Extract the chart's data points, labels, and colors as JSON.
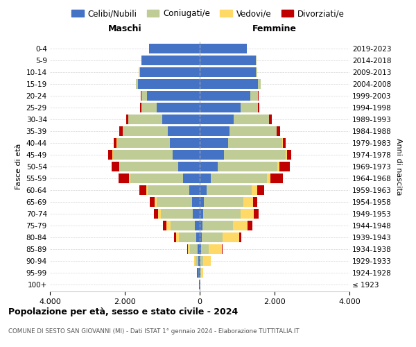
{
  "age_groups": [
    "100+",
    "95-99",
    "90-94",
    "85-89",
    "80-84",
    "75-79",
    "70-74",
    "65-69",
    "60-64",
    "55-59",
    "50-54",
    "45-49",
    "40-44",
    "35-39",
    "30-34",
    "25-29",
    "20-24",
    "15-19",
    "10-14",
    "5-9",
    "0-4"
  ],
  "birth_years": [
    "≤ 1923",
    "1924-1928",
    "1929-1933",
    "1934-1938",
    "1939-1943",
    "1944-1948",
    "1949-1953",
    "1954-1958",
    "1959-1963",
    "1964-1968",
    "1969-1973",
    "1974-1978",
    "1979-1983",
    "1984-1988",
    "1989-1993",
    "1994-1998",
    "1999-2003",
    "2004-2008",
    "2009-2013",
    "2014-2018",
    "2019-2023"
  ],
  "colors": {
    "celibi": "#4472C4",
    "coniugati": "#BFCC96",
    "vedovi": "#FFD966",
    "divorziati": "#C00000",
    "background": "#FFFFFF",
    "grid": "#CCCCCC",
    "dashed_line": "#AAAAAA"
  },
  "maschi": {
    "celibi": [
      10,
      30,
      30,
      60,
      100,
      130,
      180,
      200,
      280,
      450,
      580,
      720,
      800,
      850,
      1000,
      1150,
      1400,
      1650,
      1600,
      1550,
      1350
    ],
    "coniugati": [
      5,
      20,
      80,
      200,
      450,
      650,
      850,
      950,
      1100,
      1400,
      1550,
      1600,
      1400,
      1200,
      900,
      400,
      150,
      50,
      20,
      10,
      5
    ],
    "vedovi": [
      2,
      10,
      30,
      50,
      80,
      100,
      80,
      60,
      40,
      30,
      25,
      20,
      15,
      10,
      5,
      5,
      5,
      3,
      2,
      1,
      1
    ],
    "divorziati": [
      1,
      5,
      10,
      20,
      50,
      100,
      120,
      130,
      200,
      280,
      200,
      100,
      80,
      80,
      50,
      30,
      10,
      5,
      3,
      2,
      1
    ]
  },
  "femmine": {
    "celibi": [
      10,
      20,
      20,
      40,
      60,
      80,
      100,
      120,
      180,
      300,
      480,
      650,
      750,
      800,
      900,
      1100,
      1350,
      1550,
      1500,
      1500,
      1250
    ],
    "coniugati": [
      5,
      15,
      70,
      200,
      550,
      800,
      1000,
      1050,
      1200,
      1500,
      1600,
      1650,
      1450,
      1250,
      950,
      450,
      200,
      80,
      30,
      15,
      5
    ],
    "vedovi": [
      10,
      60,
      200,
      350,
      450,
      400,
      350,
      250,
      150,
      80,
      50,
      30,
      20,
      10,
      8,
      5,
      5,
      3,
      2,
      1,
      1
    ],
    "divorziati": [
      1,
      5,
      10,
      20,
      60,
      120,
      120,
      120,
      200,
      350,
      280,
      120,
      80,
      80,
      60,
      30,
      15,
      5,
      3,
      2,
      1
    ]
  },
  "xlim": 4000,
  "xticks": [
    -4000,
    -2000,
    0,
    2000,
    4000
  ],
  "xticklabels": [
    "4.000",
    "2.000",
    "0",
    "2.000",
    "4.000"
  ],
  "title_main": "Popolazione per età, sesso e stato civile - 2024",
  "title_sub": "COMUNE DI SESTO SAN GIOVANNI (MI) - Dati ISTAT 1° gennaio 2024 - Elaborazione TUTTITALIA.IT",
  "ylabel_left": "Fasce di età",
  "ylabel_right": "Anni di nascita",
  "legend_labels": [
    "Celibi/Nubili",
    "Coniugati/e",
    "Vedovi/e",
    "Divorziati/e"
  ]
}
